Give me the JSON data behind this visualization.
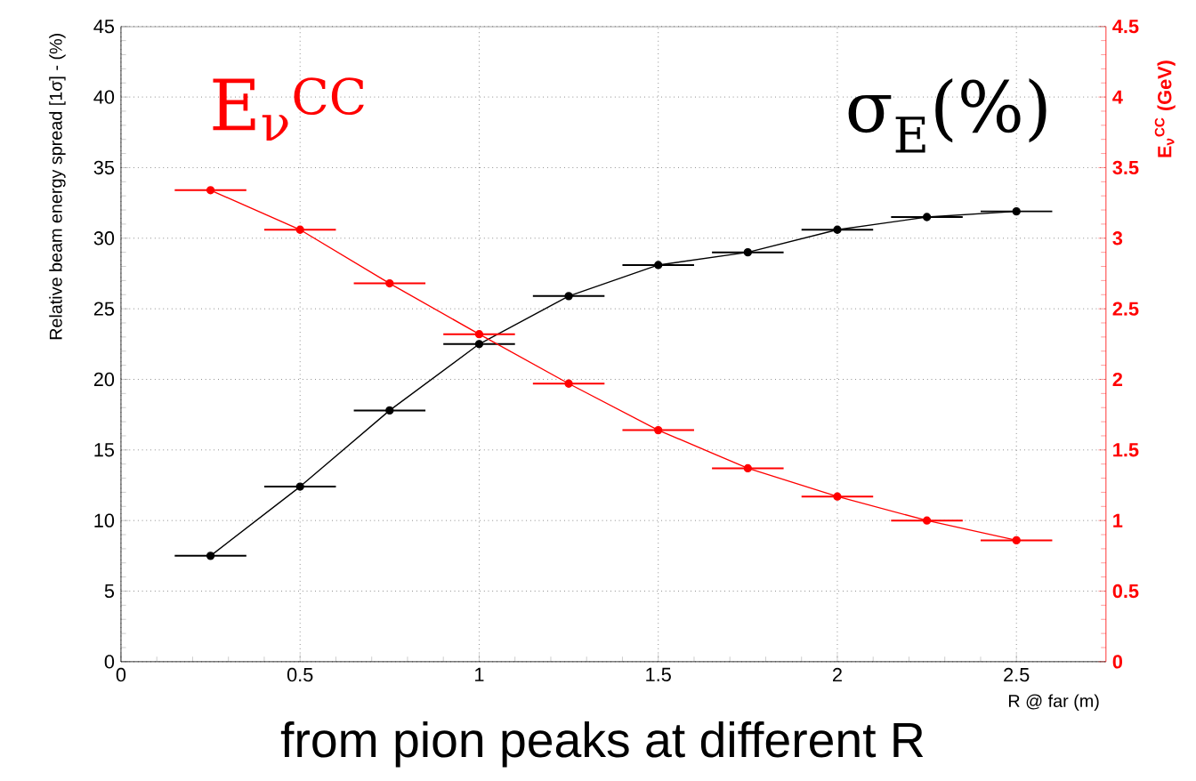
{
  "chart_data": {
    "type": "line",
    "xlabel": "R @ far (m)",
    "ylabel": "Relative beam energy spread [1σ] - (%)",
    "y2label": "E$_{ν}$$^{CC}$ (GeV)",
    "annotations": [
      "from pion peaks at different R"
    ],
    "x": [
      0.25,
      0.5,
      0.75,
      1.0,
      1.25,
      1.5,
      1.75,
      2.0,
      2.25,
      2.5
    ],
    "series": [
      {
        "name": "σ$_{E}$(%)",
        "color": "#000000",
        "values": [
          7.5,
          12.4,
          17.8,
          22.5,
          25.9,
          28.1,
          29.0,
          30.6,
          31.5,
          31.9
        ],
        "xerrors": [
          0.1,
          0.1,
          0.1,
          0.1,
          0.1,
          0.1,
          0.1,
          0.1,
          0.1,
          0.1
        ]
      },
      {
        "name": "E$_{ν}$$^{CC}$",
        "color": "#ff0000",
        "axis": "y2",
        "values": [
          3.34,
          3.06,
          2.68,
          2.32,
          1.97,
          1.64,
          1.37,
          1.17,
          1.0,
          0.86
        ],
        "xerrors": [
          0.1,
          0.1,
          0.1,
          0.1,
          0.1,
          0.1,
          0.1,
          0.1,
          0.1,
          0.1
        ]
      }
    ],
    "xlim": [
      0,
      2.75
    ],
    "xticks": [
      0,
      0.5,
      1,
      1.5,
      2,
      2.5
    ],
    "ylim": [
      0,
      45
    ],
    "yticks": [
      0,
      5,
      10,
      15,
      20,
      25,
      30,
      35,
      40,
      45
    ],
    "y2lim": [
      0,
      4.5
    ],
    "y2ticks": [
      0,
      0.5,
      1,
      1.5,
      2,
      2.5,
      3,
      3.5,
      4,
      4.5
    ],
    "grid": true,
    "legend": false,
    "marker": "circle",
    "line_style": "solid"
  }
}
